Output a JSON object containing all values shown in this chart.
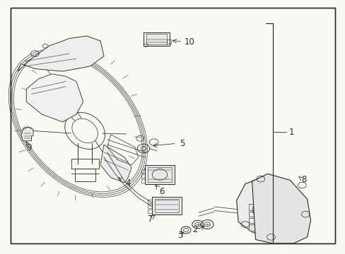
{
  "bg": "#f8f8f5",
  "lc": "#2a2a2a",
  "fig_w": 4.89,
  "fig_h": 3.6,
  "dpi": 100,
  "fs": 8.5,
  "border": [
    0.03,
    0.04,
    0.94,
    0.93
  ],
  "label_positions": {
    "1": [
      0.845,
      0.48,
      0.8,
      0.48
    ],
    "2": [
      0.565,
      0.115,
      0.575,
      0.14
    ],
    "3": [
      0.515,
      0.075,
      0.525,
      0.1
    ],
    "4": [
      0.385,
      0.295,
      0.405,
      0.315
    ],
    "5": [
      0.525,
      0.435,
      0.5,
      0.44
    ],
    "6": [
      0.47,
      0.235,
      0.48,
      0.255
    ],
    "7": [
      0.44,
      0.1,
      0.455,
      0.125
    ],
    "8": [
      0.875,
      0.295,
      0.86,
      0.31
    ],
    "9": [
      0.085,
      0.415,
      0.105,
      0.43
    ],
    "10": [
      0.535,
      0.835,
      0.5,
      0.83
    ]
  }
}
